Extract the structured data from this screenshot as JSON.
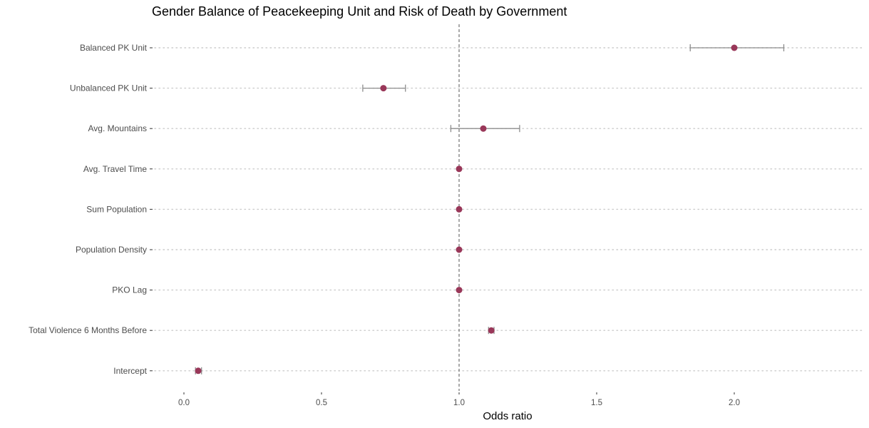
{
  "chart_data": {
    "type": "scatter",
    "subtype": "coefficient-plot",
    "title": "Gender Balance of Peacekeeping Unit and Risk of Death by Government",
    "xlabel": "Odds ratio",
    "ylabel": "",
    "xlim": [
      -0.12,
      2.43
    ],
    "xticks": [
      0.0,
      0.5,
      1.0,
      1.5,
      2.0
    ],
    "xtick_labels": [
      "0.0",
      "0.5",
      "1.0",
      "1.5",
      "2.0"
    ],
    "reference_line": 1.0,
    "grid": "dotted horizontal major gridlines",
    "legend": "none",
    "terms": [
      {
        "label": "Balanced PK Unit",
        "estimate": 2.0,
        "low": 1.84,
        "high": 2.18
      },
      {
        "label": "Unbalanced PK Unit",
        "estimate": 0.725,
        "low": 0.65,
        "high": 0.805
      },
      {
        "label": "Avg. Mountains",
        "estimate": 1.088,
        "low": 0.97,
        "high": 1.22
      },
      {
        "label": "Avg. Travel Time",
        "estimate": 1.0,
        "low": 0.996,
        "high": 1.004
      },
      {
        "label": "Sum Population",
        "estimate": 1.0,
        "low": 0.998,
        "high": 1.002
      },
      {
        "label": "Population Density",
        "estimate": 1.0,
        "low": 0.996,
        "high": 1.004
      },
      {
        "label": "PKO Lag",
        "estimate": 1.0,
        "low": 0.996,
        "high": 1.004
      },
      {
        "label": "Total Violence 6 Months Before",
        "estimate": 1.117,
        "low": 1.107,
        "high": 1.127
      },
      {
        "label": "Intercept",
        "estimate": 0.052,
        "low": 0.042,
        "high": 0.064
      }
    ],
    "colors": {
      "point": "#993759",
      "errorbar": "#8c8c8c",
      "grid": "#cccccc",
      "reference": "#555555",
      "tick": "#333333"
    }
  }
}
